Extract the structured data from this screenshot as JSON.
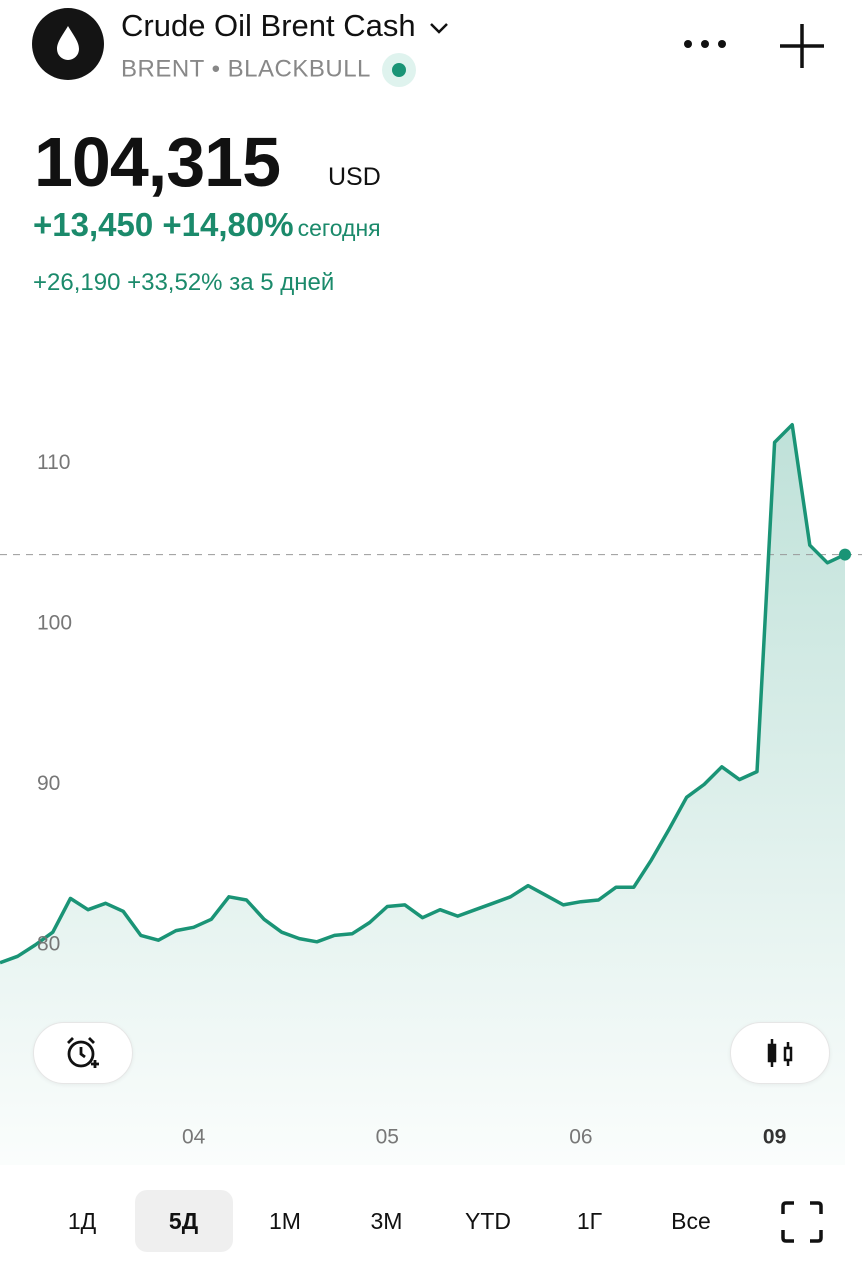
{
  "header": {
    "title": "Crude Oil Brent Cash",
    "symbol": "BRENT",
    "broker": "BLACKBULL",
    "price": "104,315",
    "currency": "USD",
    "change": "+13,450",
    "change_percent": "+14,80%",
    "change_period": "сегодня",
    "change_5d": "+26,190",
    "change_5d_percent": "+33,52%",
    "change_5d_period": "за 5 дней"
  },
  "chart_data": {
    "type": "line",
    "categories": [
      null,
      null,
      null,
      null,
      null,
      null,
      null,
      null,
      null,
      null,
      null,
      "04",
      null,
      null,
      null,
      null,
      null,
      null,
      null,
      null,
      null,
      null,
      "05",
      null,
      null,
      null,
      null,
      null,
      null,
      null,
      null,
      null,
      null,
      "06",
      null,
      null,
      null,
      null,
      null,
      null,
      null,
      null,
      null,
      null,
      "09",
      null,
      null,
      null,
      null
    ],
    "values": [
      78.9,
      79.3,
      80.0,
      80.8,
      82.9,
      82.2,
      82.6,
      82.1,
      80.6,
      80.3,
      80.9,
      81.1,
      81.6,
      83.0,
      82.8,
      81.6,
      80.8,
      80.4,
      80.2,
      80.6,
      80.7,
      81.4,
      82.4,
      82.5,
      81.7,
      82.2,
      81.8,
      82.2,
      82.6,
      83.0,
      83.7,
      83.1,
      82.5,
      82.7,
      82.8,
      83.6,
      83.6,
      85.3,
      87.2,
      89.2,
      90.0,
      91.1,
      90.3,
      90.8,
      111.3,
      112.4,
      104.9,
      103.8,
      104.315
    ],
    "color": "#1a9476",
    "ylim": [
      66.3,
      118.3
    ],
    "yticks": [
      80,
      90,
      100,
      110
    ],
    "grid": false,
    "reference_line": 104.315
  },
  "ranges": [
    "1Д",
    "5Д",
    "1М",
    "3М",
    "YTD",
    "1Г",
    "Все"
  ],
  "selected_range": 1
}
